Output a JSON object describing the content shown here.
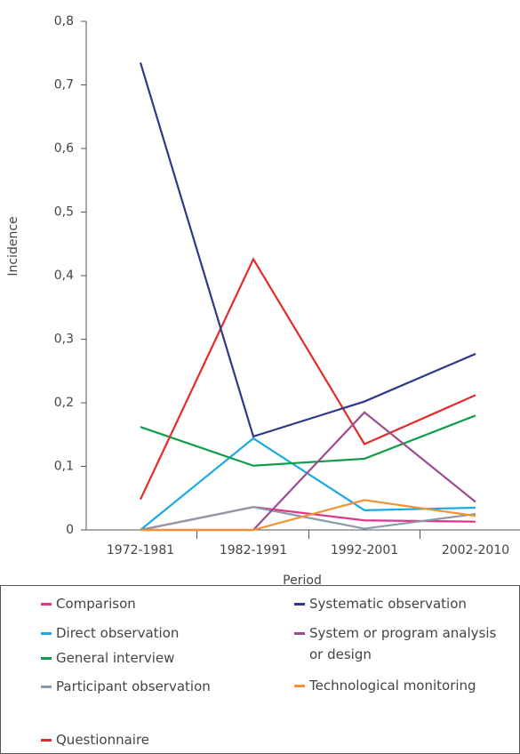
{
  "chart_data": {
    "type": "line",
    "ylabel": "Incidence",
    "xlabel": "Period",
    "categories": [
      "1972-1981",
      "1982-1991",
      "1992-2001",
      "2002-2010"
    ],
    "ylim": [
      0,
      0.8
    ],
    "yticks": [
      0,
      {
        "value": 0.1,
        "label": "0,1"
      },
      {
        "value": 0.2,
        "label": "0,2"
      },
      {
        "value": 0.3,
        "label": "0,3"
      },
      {
        "value": 0.4,
        "label": "0,4"
      },
      {
        "value": 0.5,
        "label": "0,5"
      },
      {
        "value": 0.6,
        "label": "0,6"
      },
      {
        "value": 0.7,
        "label": "0,7"
      },
      {
        "value": 0.8,
        "label": "0,8"
      }
    ],
    "series": [
      {
        "name": "Comparison",
        "color": "#e0338b",
        "values": [
          0,
          0.036,
          0.015,
          0.013
        ]
      },
      {
        "name": "Direct observation",
        "color": "#1ba9e1",
        "values": [
          0,
          0.144,
          0.031,
          0.035
        ]
      },
      {
        "name": "General interview",
        "color": "#0f9d4a",
        "values": [
          0.162,
          0.101,
          0.112,
          0.18
        ]
      },
      {
        "name": "Participant observation",
        "color": "#8a9aa6",
        "values": [
          0,
          0.036,
          0.002,
          0.025
        ]
      },
      {
        "name": "Questionnaire",
        "color": "#e32b2b",
        "values": [
          0.048,
          0.426,
          0.135,
          0.212
        ]
      },
      {
        "name": "Systematic observation",
        "color": "#2e3a87",
        "values": [
          0.735,
          0.147,
          0.202,
          0.277
        ]
      },
      {
        "name": "System or program analysis or design",
        "color": "#9b4d8f",
        "values": [
          0,
          0,
          0.185,
          0.044
        ]
      },
      {
        "name": "Technological monitoring",
        "color": "#f39233",
        "values": [
          0,
          0,
          0.047,
          0.022
        ]
      }
    ]
  }
}
